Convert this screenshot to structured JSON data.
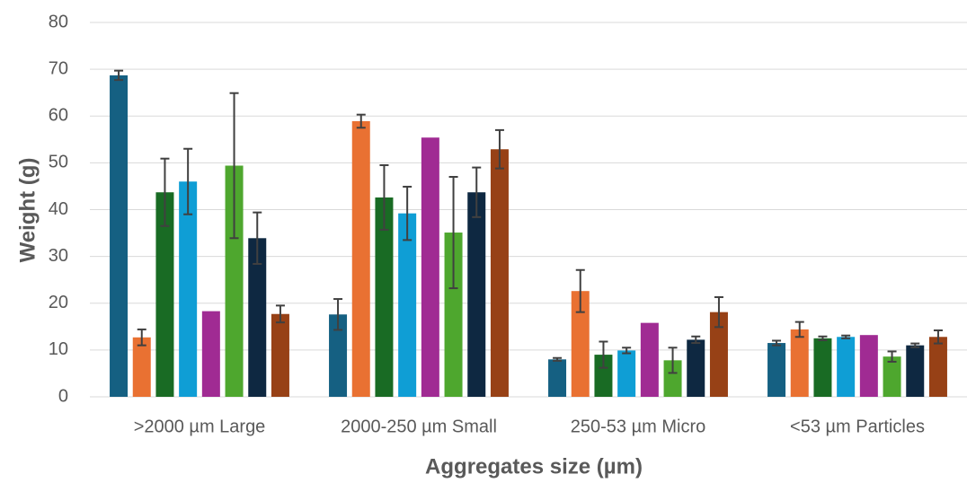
{
  "chart_data": {
    "type": "bar",
    "title": "",
    "xlabel": "Aggregates size (µm)",
    "ylabel": "Weight (g)",
    "ylim": [
      0,
      80
    ],
    "yticks": [
      "0",
      "10",
      "20",
      "30",
      "40",
      "50",
      "60",
      "70",
      "80"
    ],
    "grid": true,
    "legend": "none",
    "categories": [
      ">2000 µm Large",
      "2000-250 µm Small",
      "250-53 µm Micro",
      "<53 µm Particles"
    ],
    "series": [
      {
        "color": "#156082",
        "values": [
          68.7,
          17.6,
          8.0,
          11.5
        ],
        "errors": [
          1.0,
          3.3,
          0.3,
          0.5
        ]
      },
      {
        "color": "#e97132",
        "values": [
          12.7,
          58.9,
          22.6,
          14.4
        ],
        "errors": [
          1.7,
          1.4,
          4.5,
          1.6
        ]
      },
      {
        "color": "#196b24",
        "values": [
          43.7,
          42.6,
          9.0,
          12.5
        ],
        "errors": [
          7.2,
          6.9,
          2.8,
          0.4
        ]
      },
      {
        "color": "#0f9ed5",
        "values": [
          46.0,
          39.2,
          9.9,
          12.8
        ],
        "errors": [
          7.0,
          5.7,
          0.6,
          0.3
        ]
      },
      {
        "color": "#a02b93",
        "values": [
          18.3,
          55.4,
          15.8,
          13.2
        ],
        "errors": [
          0,
          0,
          0,
          0
        ]
      },
      {
        "color": "#4ea72e",
        "values": [
          49.4,
          35.1,
          7.8,
          8.6
        ],
        "errors": [
          15.5,
          11.9,
          2.7,
          1.1
        ]
      },
      {
        "color": "#0e2841",
        "values": [
          33.9,
          43.7,
          12.2,
          11.0
        ],
        "errors": [
          5.5,
          5.3,
          0.7,
          0.4
        ]
      },
      {
        "color": "#974116",
        "values": [
          17.7,
          52.9,
          18.1,
          12.8
        ],
        "errors": [
          1.8,
          4.1,
          3.2,
          1.4
        ]
      }
    ]
  }
}
